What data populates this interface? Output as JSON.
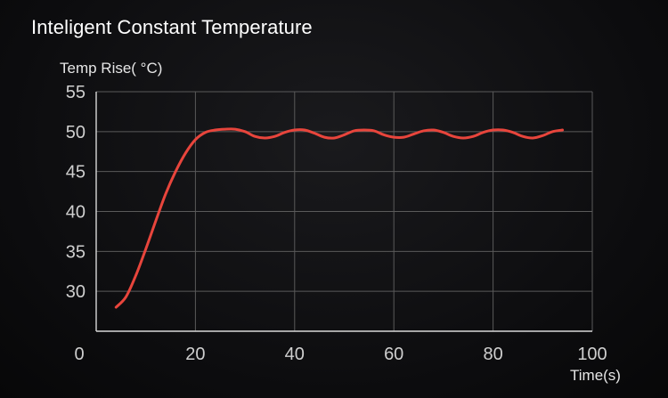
{
  "header": {
    "title": "Inteligent Constant Temperature"
  },
  "chart_data": {
    "type": "line",
    "title": "Inteligent Constant Temperature",
    "xlabel": "Time(s)",
    "ylabel": "Temp Rise( °C)",
    "xlim": [
      0,
      100
    ],
    "ylim": [
      25,
      55
    ],
    "x_ticks": [
      0,
      20,
      40,
      60,
      80,
      100
    ],
    "y_ticks": [
      30,
      35,
      40,
      45,
      50,
      55
    ],
    "grid": true,
    "colors": {
      "line": "#e8453c",
      "grid": "#5a5a5a",
      "axis": "#d8d8d8"
    },
    "series": [
      {
        "x": [
          4,
          6,
          8,
          10,
          12,
          14,
          16,
          18,
          20,
          22,
          24,
          26,
          28,
          30,
          32,
          34,
          36,
          38,
          40,
          42,
          44,
          46,
          48,
          50,
          52,
          54,
          56,
          58,
          60,
          62,
          64,
          66,
          68,
          70,
          72,
          74,
          76,
          78,
          80,
          82,
          84,
          86,
          88,
          90,
          92,
          94
        ],
        "y": [
          28.0,
          29.3,
          32.0,
          35.3,
          38.8,
          42.2,
          45.0,
          47.3,
          49.0,
          49.9,
          50.2,
          50.3,
          50.3,
          50.0,
          49.4,
          49.2,
          49.4,
          49.9,
          50.2,
          50.2,
          49.8,
          49.3,
          49.2,
          49.6,
          50.1,
          50.2,
          50.1,
          49.6,
          49.3,
          49.3,
          49.7,
          50.1,
          50.2,
          49.9,
          49.4,
          49.2,
          49.4,
          49.9,
          50.2,
          50.2,
          49.9,
          49.4,
          49.2,
          49.5,
          50.0,
          50.2
        ]
      }
    ]
  }
}
